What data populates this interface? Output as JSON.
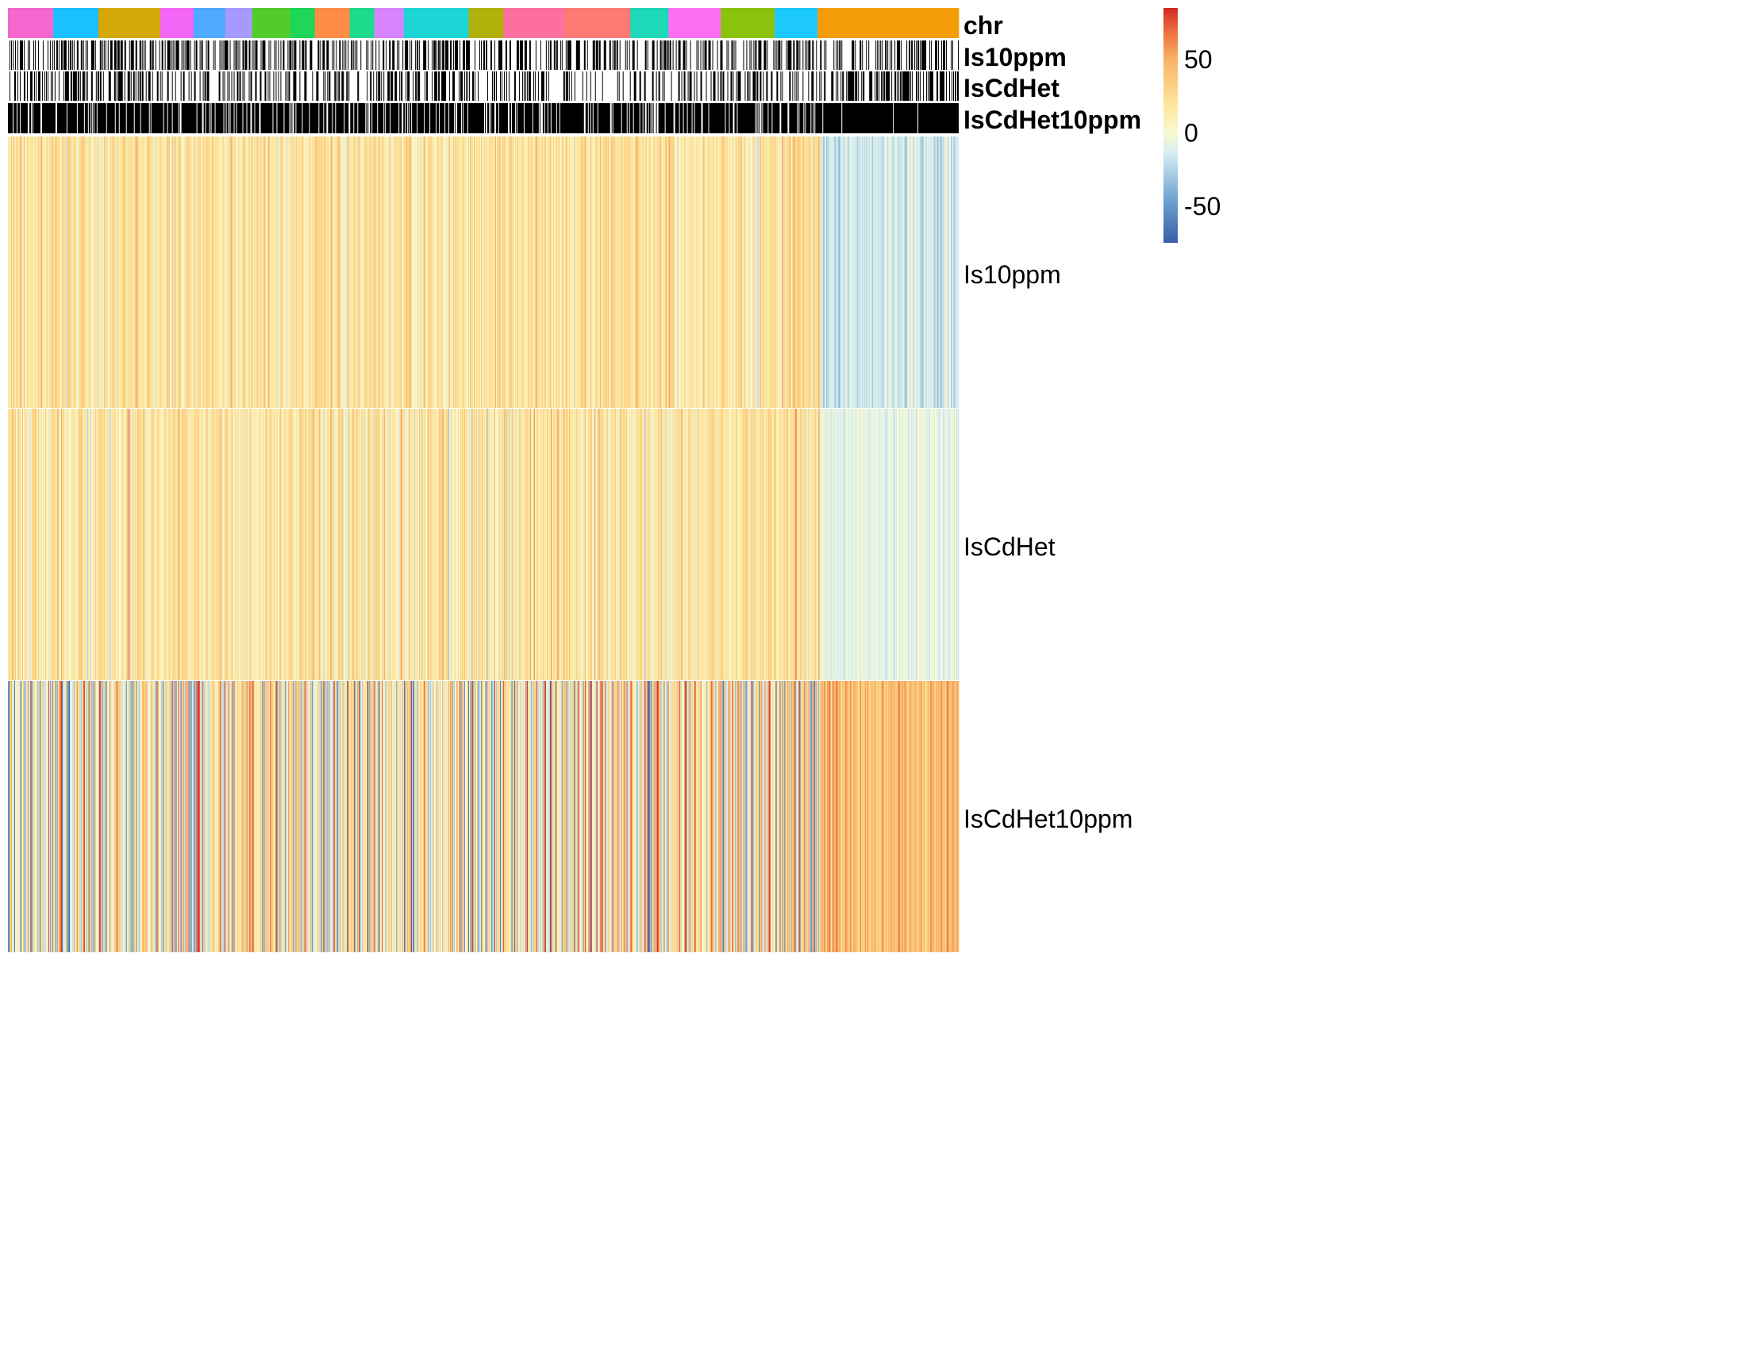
{
  "chart_data": {
    "type": "heatmap",
    "annotation_tracks": [
      {
        "name": "chr",
        "kind": "categorical",
        "segments": [
          {
            "color": "#F566CF",
            "span": 57
          },
          {
            "color": "#1AC0FF",
            "span": 57
          },
          {
            "color": "#D4A80A",
            "span": 78
          },
          {
            "color": "#F466F6",
            "span": 42
          },
          {
            "color": "#4FA9FF",
            "span": 40
          },
          {
            "color": "#A79AFF",
            "span": 34
          },
          {
            "color": "#52CB2B",
            "span": 48
          },
          {
            "color": "#1ED657",
            "span": 31
          },
          {
            "color": "#FF8C46",
            "span": 44
          },
          {
            "color": "#1DDB8B",
            "span": 31
          },
          {
            "color": "#D883FF",
            "span": 37
          },
          {
            "color": "#1ED5D5",
            "span": 82
          },
          {
            "color": "#B1B10C",
            "span": 44
          },
          {
            "color": "#FC6FA0",
            "span": 76
          },
          {
            "color": "#FB7B74",
            "span": 84
          },
          {
            "color": "#1DD9B7",
            "span": 48
          },
          {
            "color": "#FC6FF4",
            "span": 66
          },
          {
            "color": "#8BC30C",
            "span": 68
          },
          {
            "color": "#1DC9FB",
            "span": 54
          },
          {
            "color": "#F39C0A",
            "span": 178
          }
        ]
      },
      {
        "name": "Is10ppm",
        "kind": "binary",
        "density": [
          0.45,
          0.45,
          0.4,
          0.45,
          0.4,
          0.35,
          0.35
        ]
      },
      {
        "name": "IsCdHet",
        "kind": "binary",
        "density": [
          0.4,
          0.35,
          0.35,
          0.35,
          0.25,
          0.3,
          0.55
        ]
      },
      {
        "name": "IsCdHet10ppm",
        "kind": "binary",
        "density": [
          0.88,
          0.85,
          0.82,
          0.8,
          0.78,
          0.82,
          0.97
        ]
      }
    ],
    "rows": [
      "Is10ppm",
      "IsCdHet",
      "IsCdHet10ppm"
    ],
    "n_columns": 1200,
    "cluster_split_fraction": 0.855,
    "row_profiles": [
      {
        "row": "Is10ppm",
        "main_mean": 20,
        "main_sd": 14,
        "tail_mean": -15,
        "tail_sd": 10
      },
      {
        "row": "IsCdHet",
        "main_mean": 18,
        "main_sd": 16,
        "tail_mean": -8,
        "tail_sd": 6
      },
      {
        "row": "IsCdHet10ppm",
        "main_mean": 12,
        "main_sd": 38,
        "tail_mean": 42,
        "tail_sd": 12
      }
    ],
    "color_scale": {
      "min": -75,
      "max": 85,
      "stops": [
        {
          "value": -75,
          "color": "#3A5FA8"
        },
        {
          "value": -45,
          "color": "#6FA3D0"
        },
        {
          "value": -15,
          "color": "#D3ECF2"
        },
        {
          "value": 0,
          "color": "#FAFAD2"
        },
        {
          "value": 20,
          "color": "#FCE59A"
        },
        {
          "value": 50,
          "color": "#F9B366"
        },
        {
          "value": 70,
          "color": "#EA6A3C"
        },
        {
          "value": 85,
          "color": "#D22A26"
        }
      ],
      "ticks": [
        {
          "value": 50,
          "label": "50"
        },
        {
          "value": 0,
          "label": "0"
        },
        {
          "value": -50,
          "label": "-50"
        }
      ]
    }
  }
}
